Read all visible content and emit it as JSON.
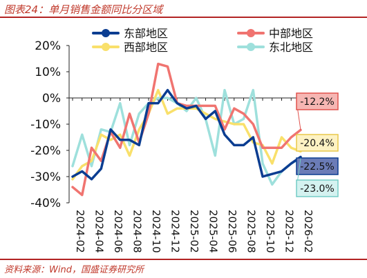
{
  "header": {
    "title": "图表24：单月销售金额同比分区域"
  },
  "footer": {
    "source": "资料来源：Wind，国盛证券研究所"
  },
  "colors": {
    "east": "#0b3d91",
    "central": "#f07470",
    "west": "#f9e06b",
    "northeast": "#9ee0dc",
    "rule": "#b22222",
    "title": "#c0392b"
  },
  "chart_data": {
    "type": "line",
    "title": "",
    "xlabel": "",
    "ylabel": "",
    "ylim": [
      -40,
      20
    ],
    "yticks": [
      "20%",
      "10%",
      "0%",
      "-10%",
      "-20%",
      "-30%",
      "-40%"
    ],
    "ytick_values": [
      20,
      10,
      0,
      -10,
      -20,
      -30,
      -40
    ],
    "x": [
      "2024-02",
      "2024-03",
      "2024-04",
      "2024-05",
      "2024-06",
      "2024-07",
      "2024-08",
      "2024-09",
      "2024-10",
      "2024-11",
      "2024-12",
      "2025-01",
      "2025-02",
      "2025-03",
      "2025-04",
      "2025-05",
      "2025-06",
      "2025-07",
      "2025-08",
      "2025-09",
      "2025-10",
      "2025-11",
      "2025-12",
      "2026-01",
      "2026-02"
    ],
    "xtick_labels": [
      "2024-02",
      "2024-04",
      "2024-06",
      "2024-08",
      "2024-10",
      "2024-12",
      "2025-02",
      "2025-04",
      "2025-06",
      "2025-08",
      "2025-10",
      "2025-12",
      "2026-02"
    ],
    "legend_position": "top",
    "series": [
      {
        "name": "东部地区",
        "color": "#0b3d91",
        "values": [
          -30,
          -28,
          -31,
          -27,
          -12,
          -16,
          -16,
          -18,
          -2,
          -2,
          3,
          -2,
          -4,
          -3,
          -8,
          -5,
          -14,
          -18,
          -18,
          -15,
          -30,
          -29,
          -28,
          -25,
          -22.5
        ]
      },
      {
        "name": "中部地区",
        "color": "#f07470",
        "values": [
          -34,
          -37,
          -19,
          -24,
          -13,
          -19,
          -6,
          -17,
          -6,
          13,
          12,
          -2,
          -3,
          -3,
          -3,
          -3,
          -12,
          -4,
          -6,
          -10,
          -19,
          -19,
          -19,
          -15,
          -12.2
        ]
      },
      {
        "name": "西部地区",
        "color": "#f9e06b",
        "values": [
          -31,
          -26,
          -24,
          -14,
          -16,
          -14,
          -22,
          -12,
          -6,
          3,
          -6,
          -4,
          -4,
          -4,
          -6,
          -8,
          -9,
          -10,
          -10,
          -17,
          -18,
          -25,
          -15,
          -19,
          -20.4
        ]
      },
      {
        "name": "东北地区",
        "color": "#9ee0dc",
        "values": [
          -26,
          -14,
          -26,
          -12,
          -13,
          -2,
          -18,
          -6,
          -2,
          0,
          0,
          -2,
          -5,
          0,
          -8,
          -22,
          3,
          -10,
          -8,
          3,
          -25,
          -33,
          -28,
          -25,
          -23.0
        ]
      }
    ],
    "end_labels": [
      {
        "series": "中部地区",
        "text": "-12.2%",
        "bg": "#f6b6b3",
        "border": "#e0524d"
      },
      {
        "series": "西部地区",
        "text": "-20.4%",
        "bg": "#fdf2c3",
        "border": "#e9c84a"
      },
      {
        "series": "东部地区",
        "text": "-22.5%",
        "bg": "#6b7cb7",
        "border": "#0b3d91"
      },
      {
        "series": "东北地区",
        "text": "-23.0%",
        "bg": "#d4f2f0",
        "border": "#73ccc6"
      }
    ]
  }
}
